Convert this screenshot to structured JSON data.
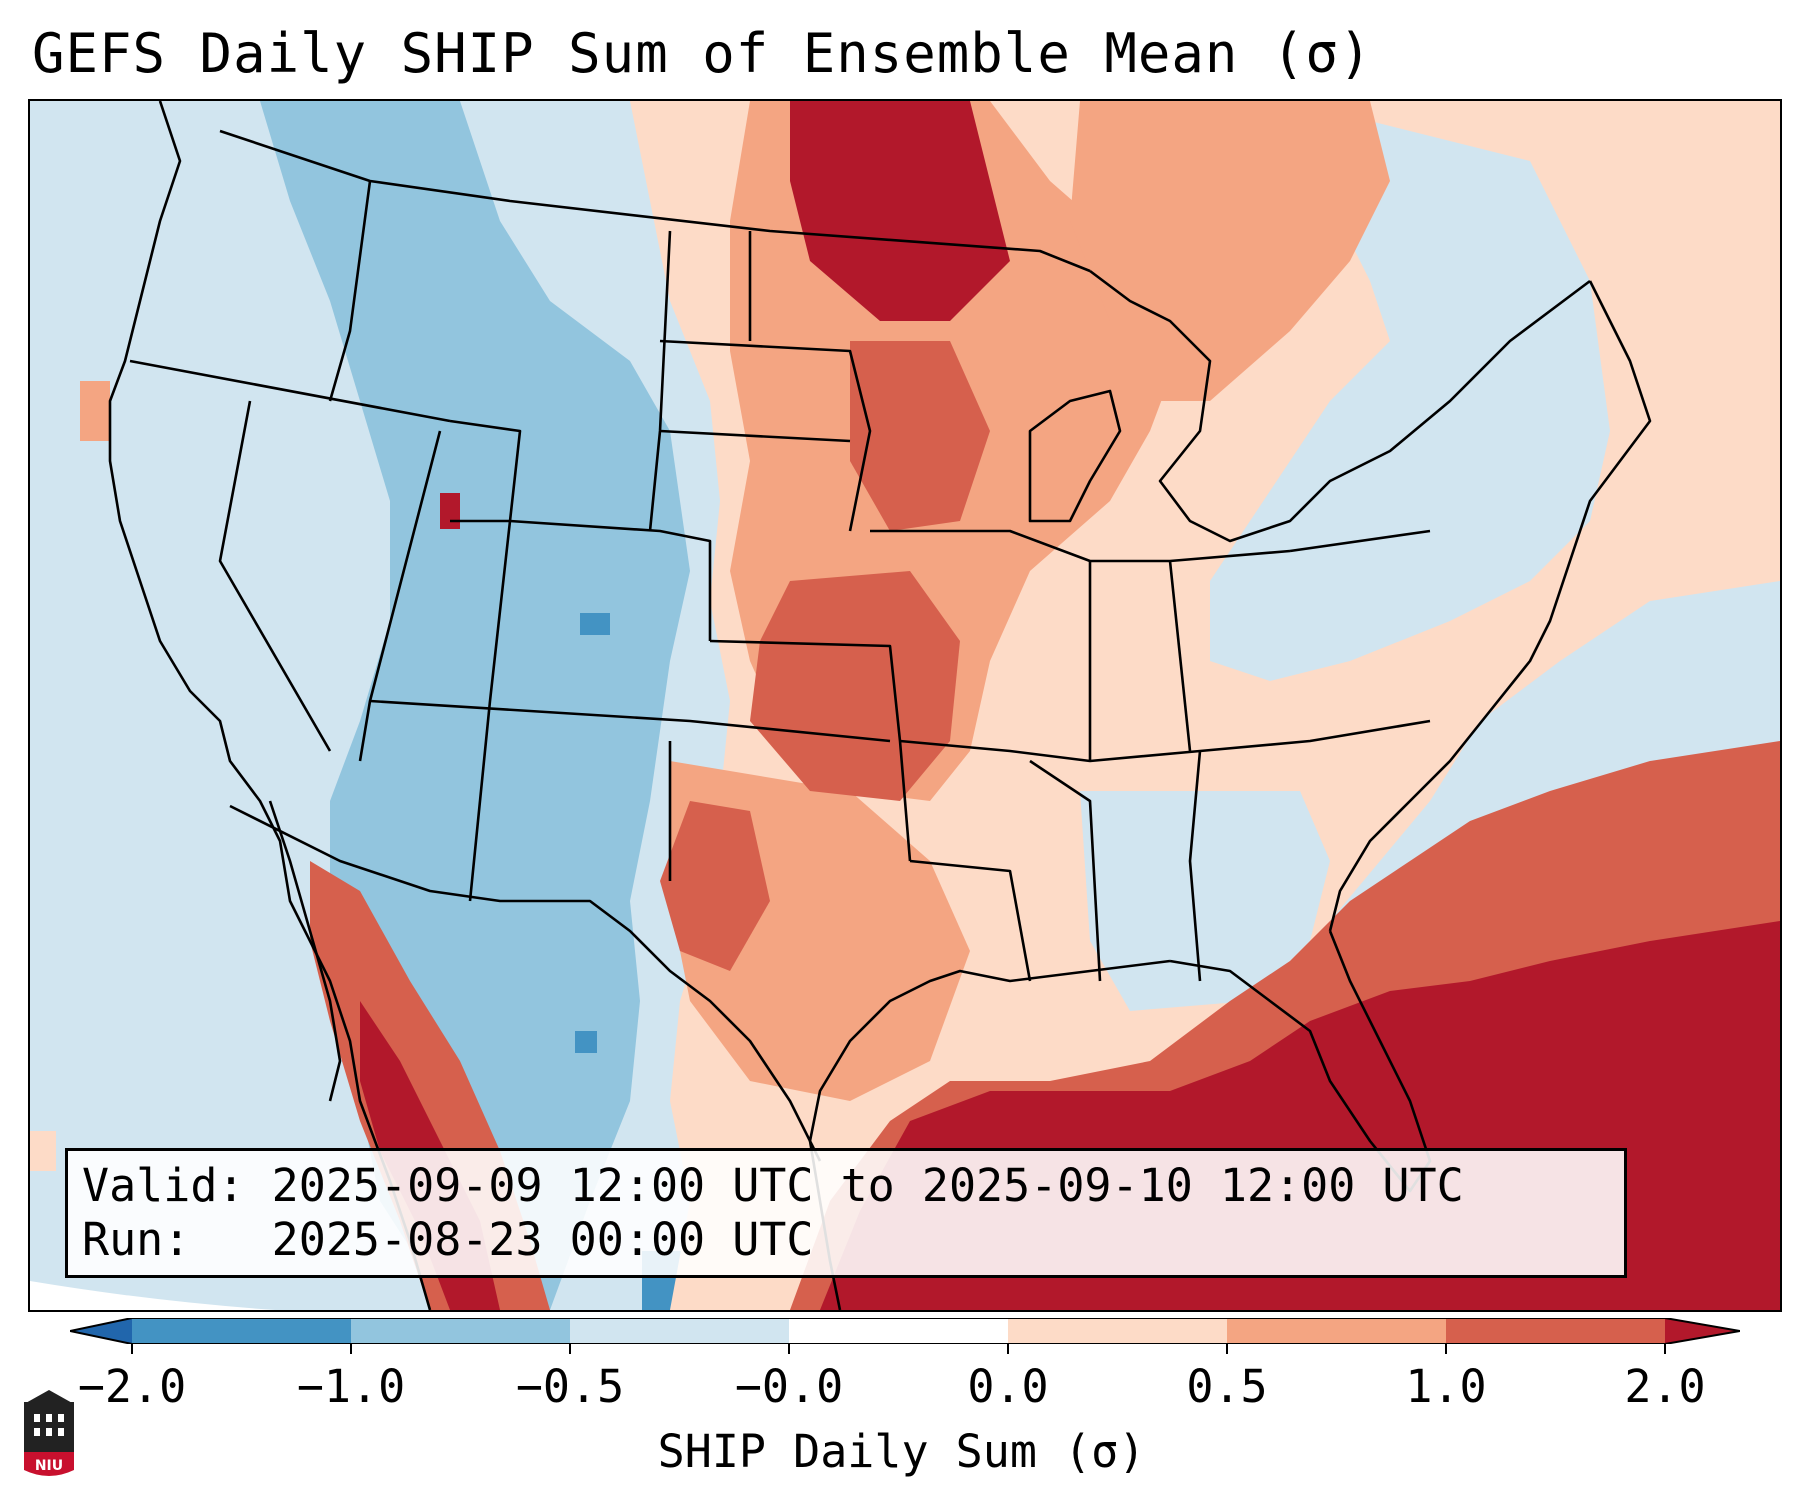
{
  "title": "GEFS Daily SHIP Sum of Ensemble Mean (σ)",
  "valid_line": "Valid: 2025-09-09 12:00 UTC to 2025-09-10 12:00 UTC",
  "run_line": "Run:   2025-08-23 00:00 UTC",
  "colorbar": {
    "label": "SHIP Daily Sum (σ)",
    "ticks": [
      "−2.0",
      "−1.0",
      "−0.5",
      "−0.0",
      "0.0",
      "0.5",
      "1.0",
      "2.0"
    ],
    "colors": [
      "#2166ac",
      "#4393c3",
      "#92c5de",
      "#d1e5f0",
      "#ffffff",
      "#fddbc7",
      "#f4a582",
      "#d6604d",
      "#b2182b"
    ]
  },
  "logo": {
    "text": "NIU",
    "color": "#c8102e"
  }
}
